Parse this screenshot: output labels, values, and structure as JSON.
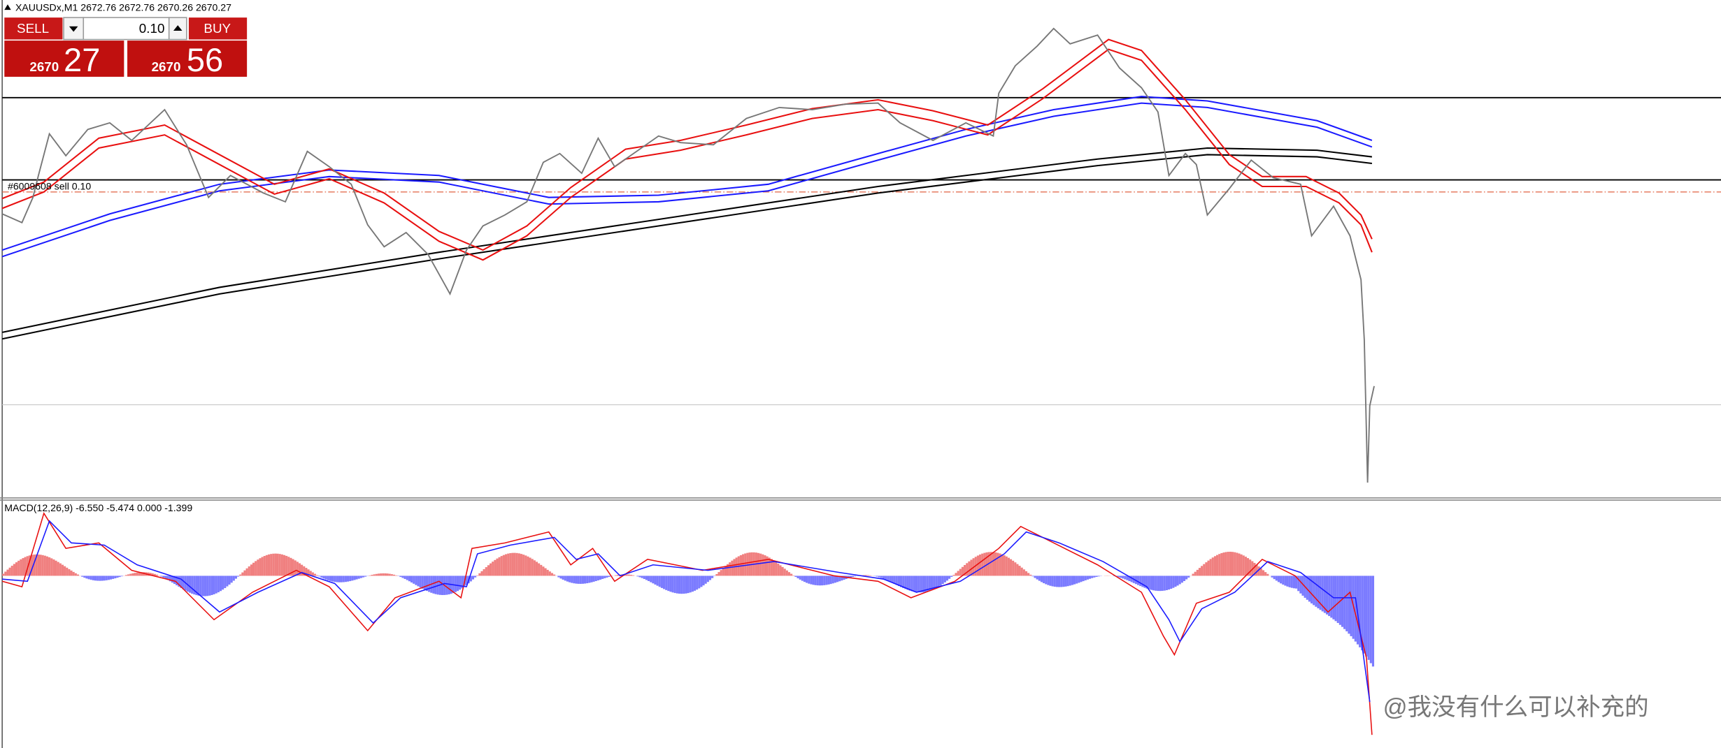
{
  "header": {
    "symbol_info": "XAUUSDx,M1  2672.76 2672.76 2670.26 2670.27"
  },
  "trade_panel": {
    "sell_label": "SELL",
    "buy_label": "BUY",
    "volume": "0.10",
    "sell_price_main": "2670",
    "sell_price_pips": "27",
    "buy_price_main": "2670",
    "buy_price_pips": "56"
  },
  "order_line": {
    "label": "#6009608 sell 0.10"
  },
  "indicator": {
    "label": "MACD(12,26,9) -6.550 -5.474 0.000 -1.399"
  },
  "watermark": "@我没有什么可以补充的"
}
